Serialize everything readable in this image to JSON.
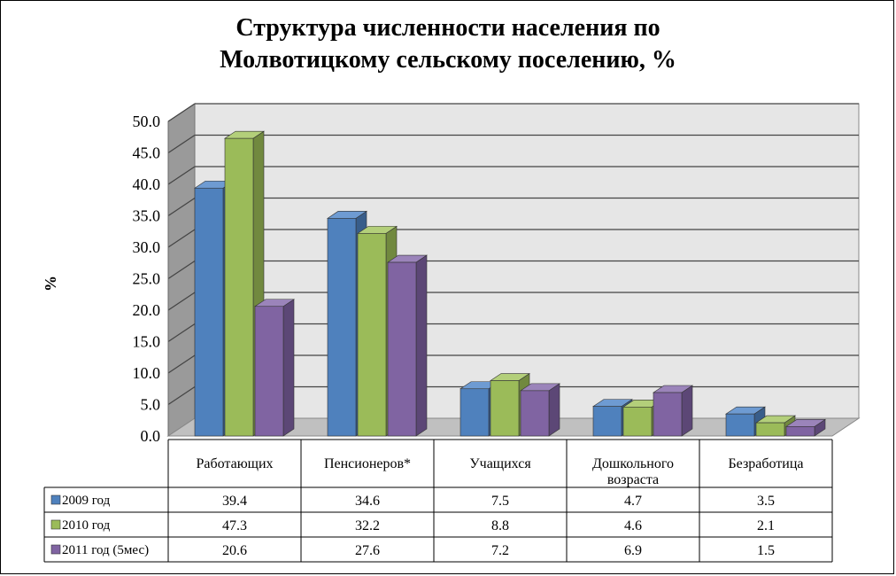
{
  "chart_data": {
    "type": "bar",
    "title_lines": [
      "Структура численности населения по",
      "Молвотицкому сельскому поселению, %"
    ],
    "ylabel": "%",
    "ylim": [
      0,
      50
    ],
    "yticks": [
      "0.0",
      "5.0",
      "10.0",
      "15.0",
      "20.0",
      "25.0",
      "30.0",
      "35.0",
      "40.0",
      "45.0",
      "50.0"
    ],
    "categories": [
      "Работающих",
      "Пенсионеров*",
      "Учащихся",
      "Дошкольного возраста",
      "Безработица"
    ],
    "category_lines": [
      [
        "Работающих"
      ],
      [
        "Пенсионеров*"
      ],
      [
        "Учащихся"
      ],
      [
        "Дошкольного",
        "возраста"
      ],
      [
        "Безработица"
      ]
    ],
    "series": [
      {
        "name": "2009 год",
        "values": [
          39.4,
          34.6,
          7.5,
          4.7,
          3.5
        ],
        "values_text": [
          "39.4",
          "34.6",
          "7.5",
          "4.7",
          "3.5"
        ],
        "color": "#4F81BD",
        "dark": "#385D8A",
        "light": "#6E9BD2"
      },
      {
        "name": "2010 год",
        "values": [
          47.3,
          32.2,
          8.8,
          4.6,
          2.1
        ],
        "values_text": [
          "47.3",
          "32.2",
          "8.8",
          "4.6",
          "2.1"
        ],
        "color": "#9BBB59",
        "dark": "#71893F",
        "light": "#B3CF7A"
      },
      {
        "name": "2011 год (5мес)",
        "values": [
          20.6,
          27.6,
          7.2,
          6.9,
          1.5
        ],
        "values_text": [
          "20.6",
          "27.6",
          "7.2",
          "6.9",
          "1.5"
        ],
        "color": "#8064A2",
        "dark": "#5C4776",
        "light": "#9B84BA"
      }
    ],
    "grid": true,
    "legend": "data-table",
    "wall_color": "#E6E6E6",
    "floor_color": "#C0C0C0"
  }
}
